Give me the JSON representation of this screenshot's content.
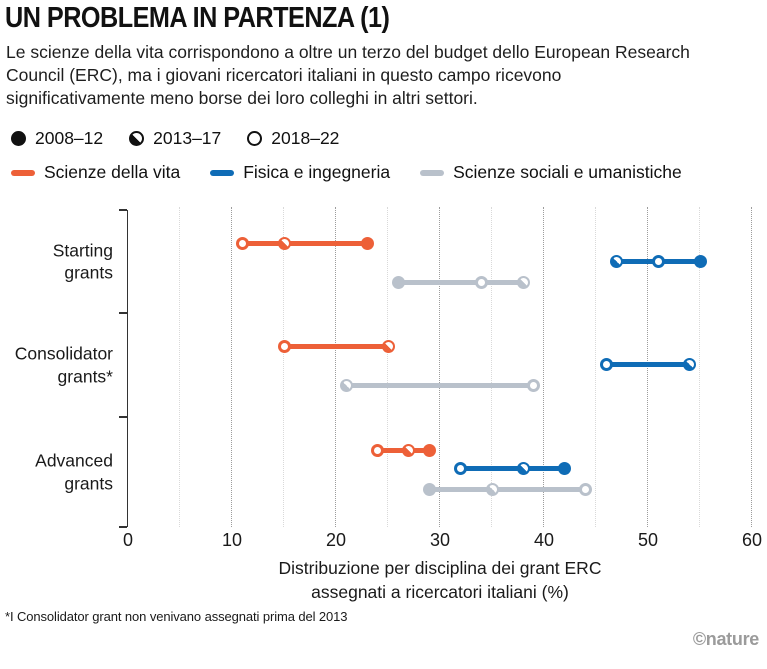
{
  "header": {
    "title": "UN PROBLEMA IN PARTENZA (1)",
    "description": "Le scienze della vita corrispondono a oltre un terzo del budget dello European Research Council (ERC), ma i giovani ricercatori italiani in questo campo ricevono significativamente meno borse dei loro colleghi in altri settori."
  },
  "legend": {
    "periods": [
      {
        "label": "2008–12",
        "marker": "filled-circle"
      },
      {
        "label": "2013–17",
        "marker": "half-filled-circle"
      },
      {
        "label": "2018–22",
        "marker": "open-circle"
      }
    ],
    "series": [
      {
        "label": "Scienze della vita",
        "color": "#ed6038"
      },
      {
        "label": "Fisica e ingegneria",
        "color": "#0f6cb6"
      },
      {
        "label": "Scienze sociali e umanistiche",
        "color": "#b9c1cb"
      }
    ]
  },
  "chart_data": {
    "type": "scatter",
    "subtype": "dot-plot-with-range-lines",
    "categories": [
      "Starting grants",
      "Consolidator grants*",
      "Advanced grants"
    ],
    "periods": [
      "2008–12",
      "2013–17",
      "2018–22"
    ],
    "period_markers": [
      "filled",
      "half",
      "open"
    ],
    "x_axis": {
      "min": 0,
      "max": 60,
      "ticks": [
        0,
        10,
        20,
        30,
        40,
        50,
        60
      ],
      "minor_gridline_step": 5,
      "label": "Distribuzione per disciplina dei grant ERC assegnati a ricercatori italiani (%)"
    },
    "series": [
      {
        "name": "Scienze della vita",
        "color": "#ed6038",
        "values": [
          [
            23,
            15,
            11
          ],
          [
            null,
            25,
            15
          ],
          [
            29,
            27,
            24
          ]
        ]
      },
      {
        "name": "Fisica e ingegneria",
        "color": "#0f6cb6",
        "values": [
          [
            55,
            47,
            51
          ],
          [
            null,
            54,
            46
          ],
          [
            42,
            38,
            32
          ]
        ]
      },
      {
        "name": "Scienze sociali e umanistiche",
        "color": "#b9c1cb",
        "values": [
          [
            26,
            38,
            34
          ],
          [
            null,
            21,
            39
          ],
          [
            29,
            35,
            44
          ]
        ]
      }
    ],
    "grid": "vertical-dotted",
    "legend_position": "top"
  },
  "footnote": "*I Consolidator grant non venivano assegnati prima del 2013",
  "credit": "©nature"
}
